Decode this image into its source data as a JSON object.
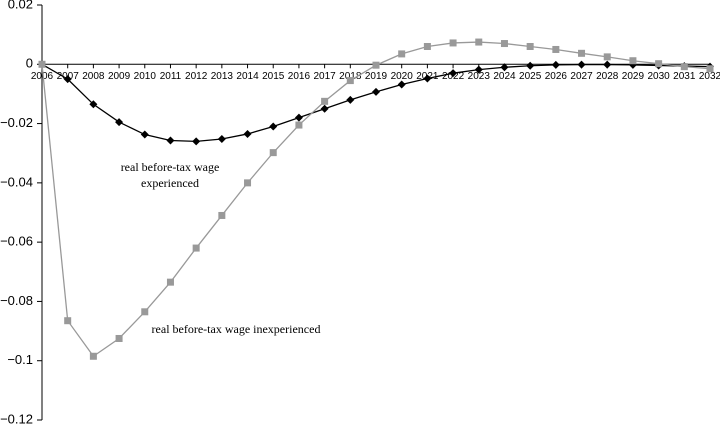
{
  "chart_data": {
    "type": "line",
    "categories": [
      "2006",
      "2007",
      "2008",
      "2009",
      "2010",
      "2011",
      "2012",
      "2013",
      "2014",
      "2015",
      "2016",
      "2017",
      "2018",
      "2019",
      "2020",
      "2021",
      "2022",
      "2023",
      "2024",
      "2025",
      "2026",
      "2027",
      "2028",
      "2029",
      "2030",
      "2031",
      "2032"
    ],
    "series": [
      {
        "color": "#000000",
        "marker": "diamond",
        "values": [
          0,
          -0.005,
          -0.0135,
          -0.0195,
          -0.0237,
          -0.0257,
          -0.026,
          -0.0252,
          -0.0235,
          -0.021,
          -0.018,
          -0.015,
          -0.012,
          -0.0093,
          -0.0068,
          -0.0048,
          -0.003,
          -0.0018,
          -0.001,
          -0.0005,
          -0.0002,
          -0.0001,
          -0.0001,
          -0.0002,
          -0.0004,
          -0.0006,
          -0.0008
        ]
      },
      {
        "color": "#999999",
        "marker": "square",
        "values": [
          0,
          -0.0865,
          -0.0985,
          -0.0925,
          -0.0835,
          -0.0735,
          -0.062,
          -0.051,
          -0.04,
          -0.0298,
          -0.0205,
          -0.0125,
          -0.0055,
          -0.0003,
          0.0035,
          0.006,
          0.0072,
          0.0075,
          0.007,
          0.006,
          0.005,
          0.0037,
          0.0025,
          0.0012,
          0.0002,
          -0.0008,
          -0.0015
        ]
      }
    ],
    "ylim": [
      -0.12,
      0.02
    ],
    "yticks": [
      {
        "value": -0.12,
        "label": "−0.12"
      },
      {
        "value": -0.1,
        "label": "−0.1"
      },
      {
        "value": -0.08,
        "label": "−0.08"
      },
      {
        "value": -0.06,
        "label": "−0.06"
      },
      {
        "value": -0.04,
        "label": "−0.04"
      },
      {
        "value": -0.02,
        "label": "−0.02"
      },
      0,
      0.02
    ],
    "annotations": [
      {
        "lines": [
          "real before-tax wage",
          "experienced"
        ],
        "series": 0
      },
      {
        "lines": [
          "real before-tax wage inexperienced"
        ],
        "series": 1
      }
    ]
  }
}
